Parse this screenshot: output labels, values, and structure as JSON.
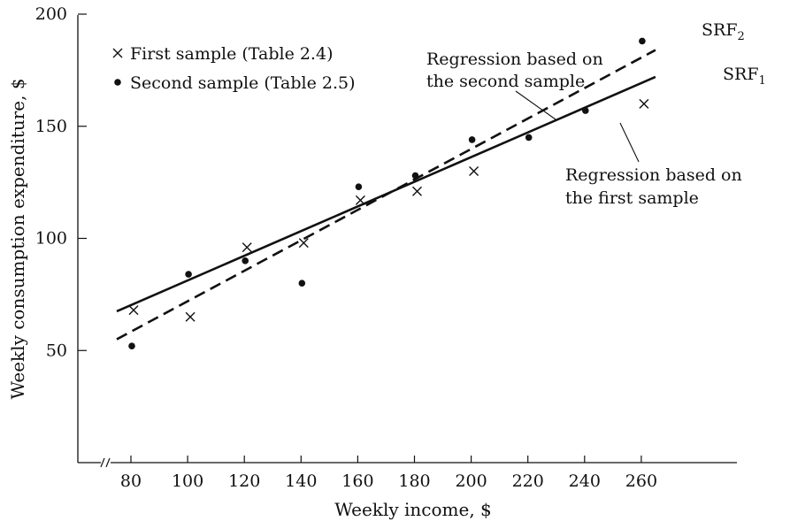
{
  "chart_data": {
    "type": "scatter",
    "xlabel": "Weekly income, $",
    "ylabel": "Weekly consumption expenditure, $",
    "xlim": [
      70,
      270
    ],
    "ylim": [
      0,
      200
    ],
    "axis_break": "x",
    "x_ticks": [
      80,
      100,
      120,
      140,
      160,
      180,
      200,
      220,
      240,
      260
    ],
    "y_ticks": [
      50,
      100,
      150,
      200
    ],
    "legend_position": "top-left",
    "series": [
      {
        "name": "First sample (Table 2.4)",
        "marker": "×",
        "x": [
          80,
          100,
          120,
          140,
          160,
          180,
          200,
          260
        ],
        "y": [
          68,
          65,
          96,
          98,
          117,
          121,
          130,
          160
        ]
      },
      {
        "name": "Second sample (Table 2.5)",
        "marker": "●",
        "x": [
          80,
          100,
          120,
          140,
          160,
          180,
          200,
          220,
          240,
          260
        ],
        "y": [
          52,
          84,
          90,
          80,
          123,
          128,
          144,
          145,
          157,
          188
        ]
      }
    ],
    "regression_lines": [
      {
        "id": "srf1",
        "label_main": "SRF",
        "label_sub": "1",
        "style": "solid",
        "x": [
          75,
          265
        ],
        "y": [
          67.5,
          172
        ],
        "annotation_lines": [
          "Regression based on",
          "the first sample"
        ]
      },
      {
        "id": "srf2",
        "label_main": "SRF",
        "label_sub": "2",
        "style": "dashed",
        "x": [
          75,
          265
        ],
        "y": [
          55,
          184
        ],
        "annotation_lines": [
          "Regression based on",
          "the second sample"
        ]
      }
    ]
  }
}
